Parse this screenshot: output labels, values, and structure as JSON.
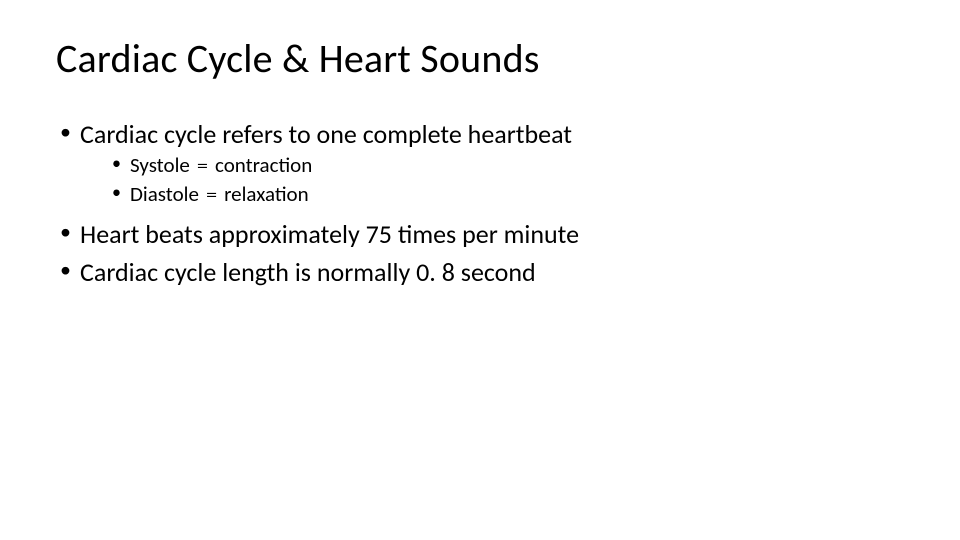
{
  "title": "Cardiac Cycle & Heart Sounds",
  "typography": {
    "title_fontsize": 40,
    "level1_fontsize": 26,
    "level2_fontsize": 21,
    "font_family": "Calibri",
    "text_color": "#000000",
    "background_color": "#ffffff"
  },
  "bullets": [
    {
      "text": "Cardiac cycle refers to one complete heartbeat",
      "sub": [
        {
          "term": "Systole",
          "eq": "=",
          "def": "contraction"
        },
        {
          "term": "Diastole",
          "eq": "=",
          "def": "relaxation"
        }
      ]
    },
    {
      "text": "Heart beats approximately 75 times per minute"
    },
    {
      "text": "Cardiac cycle length is normally 0. 8 second"
    }
  ]
}
